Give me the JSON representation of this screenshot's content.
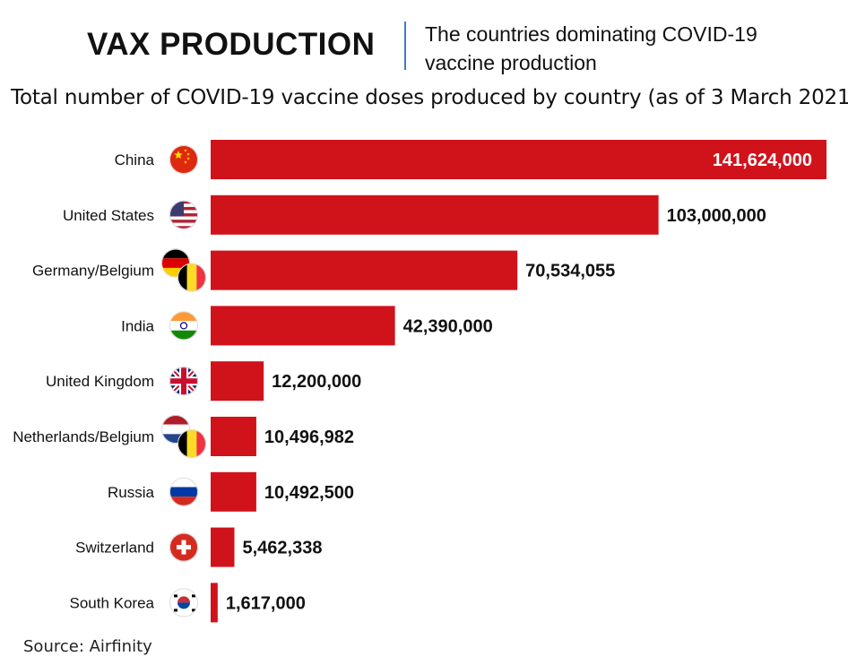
{
  "header": {
    "title": "VAX PRODUCTION",
    "subtitle": "The countries dominating COVID-19 vaccine production"
  },
  "source": "Source: Airfinity",
  "colors": {
    "bar": "#d0121b",
    "divider": "#3a7fc1"
  },
  "chart_data": {
    "type": "bar",
    "orientation": "horizontal",
    "title": "Total number of COVID-19 vaccine doses produced by country (as of 3 March 2021)",
    "xlabel": "",
    "ylabel": "",
    "grid": false,
    "xlim": [
      0,
      141624000
    ],
    "categories": [
      "China",
      "United States",
      "Germany/Belgium",
      "India",
      "United Kingdom",
      "Netherlands/Belgium",
      "Russia",
      "Switzerland",
      "South Korea"
    ],
    "values": [
      141624000,
      103000000,
      70534055,
      42390000,
      12200000,
      10496982,
      10492500,
      5462338,
      1617000
    ],
    "value_labels": [
      "141,624,000",
      "103,000,000",
      "70,534,055",
      "42,390,000",
      "12,200,000",
      "10,496,982",
      "10,492,500",
      "5,462,338",
      "1,617,000"
    ],
    "flags": [
      "china-flag-icon",
      "usa-flag-icon",
      "germany-belgium-flag-icon",
      "india-flag-icon",
      "uk-flag-icon",
      "netherlands-belgium-flag-icon",
      "russia-flag-icon",
      "switzerland-flag-icon",
      "south-korea-flag-icon"
    ]
  }
}
